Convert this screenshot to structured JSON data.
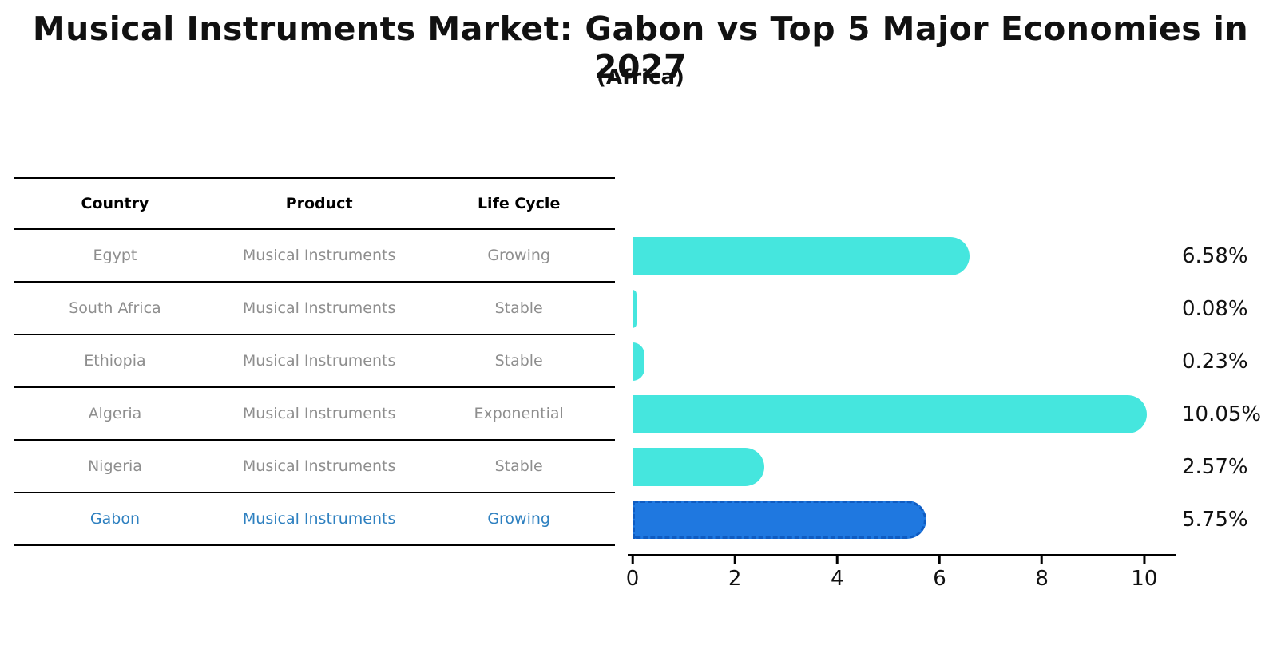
{
  "page": {
    "title": "Musical Instruments Market: Gabon vs Top 5 Major Economies in 2027",
    "subtitle": "(Africa)"
  },
  "table": {
    "headers": [
      "Country",
      "Product",
      "Life Cycle"
    ],
    "rows": [
      {
        "country": "Egypt",
        "product": "Musical Instruments",
        "life_cycle": "Growing"
      },
      {
        "country": "South Africa",
        "product": "Musical Instruments",
        "life_cycle": "Stable"
      },
      {
        "country": "Ethiopia",
        "product": "Musical Instruments",
        "life_cycle": "Stable"
      },
      {
        "country": "Algeria",
        "product": "Musical Instruments",
        "life_cycle": "Exponential"
      },
      {
        "country": "Nigeria",
        "product": "Musical Instruments",
        "life_cycle": "Stable"
      },
      {
        "country": "Gabon",
        "product": "Musical Instruments",
        "life_cycle": "Growing"
      }
    ]
  },
  "chart_data": {
    "type": "bar",
    "orientation": "horizontal",
    "title": "Musical Instruments Market: Gabon vs Top 5 Major Economies in 2027",
    "subtitle": "(Africa)",
    "categories": [
      "Egypt",
      "South Africa",
      "Ethiopia",
      "Algeria",
      "Nigeria",
      "Gabon"
    ],
    "values": [
      6.58,
      0.08,
      0.23,
      10.05,
      2.57,
      5.75
    ],
    "value_labels": [
      "6.58%",
      "0.08%",
      "0.23%",
      "10.05%",
      "2.57%",
      "5.75%"
    ],
    "x_ticks": [
      0,
      2,
      4,
      6,
      8,
      10
    ],
    "xlim": [
      0,
      10.58
    ],
    "highlight_index": 5,
    "grid": false,
    "legend": false,
    "colors": {
      "bar": "#45e6de",
      "highlight": "#1f78e0",
      "highlight_border": "#0f5cc2",
      "table_text": "#8e8e8e",
      "highlight_text": "#2e80c0",
      "axis": "#000000",
      "title": "#111111"
    }
  }
}
